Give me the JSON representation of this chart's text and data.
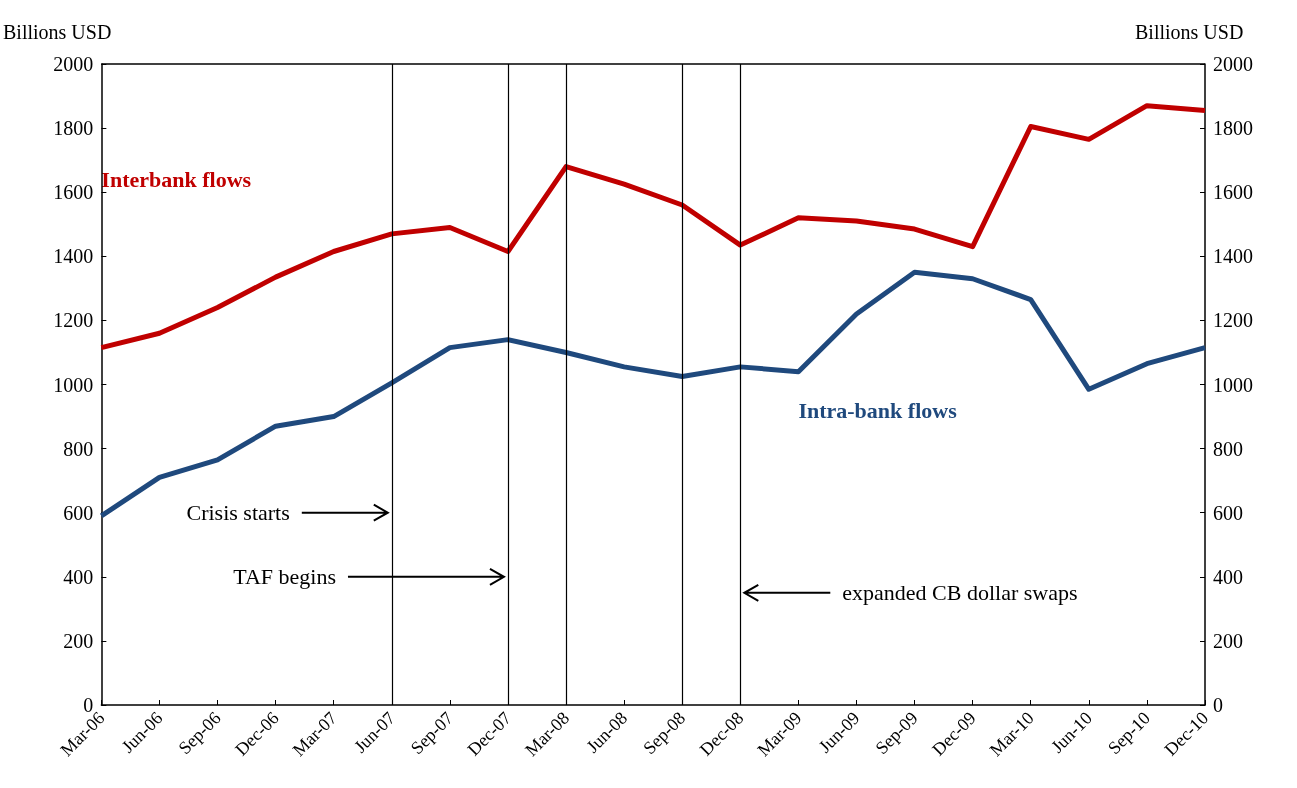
{
  "chart_data": {
    "type": "line",
    "ylabel": "Billions USD",
    "y2label": "Billions USD",
    "categories": [
      "Mar-06",
      "Jun-06",
      "Sep-06",
      "Dec-06",
      "Mar-07",
      "Jun-07",
      "Sep-07",
      "Dec-07",
      "Mar-08",
      "Jun-08",
      "Sep-08",
      "Dec-08",
      "Mar-09",
      "Jun-09",
      "Sep-09",
      "Dec-09",
      "Mar-10",
      "Jun-10",
      "Sep-10",
      "Dec-10"
    ],
    "series": [
      {
        "name": "Interbank flows",
        "color": "#c00000",
        "values": [
          1115,
          1160,
          1240,
          1335,
          1415,
          1470,
          1490,
          1415,
          1680,
          1625,
          1560,
          1435,
          1520,
          1510,
          1485,
          1430,
          1805,
          1765,
          1870,
          1855
        ]
      },
      {
        "name": "Intra-bank flows",
        "color": "#1f497d",
        "values": [
          590,
          710,
          765,
          870,
          900,
          1005,
          1115,
          1140,
          1100,
          1055,
          1025,
          1055,
          1040,
          1220,
          1350,
          1330,
          1265,
          985,
          1065,
          1115
        ]
      }
    ],
    "ylim": [
      0,
      2000
    ],
    "yticks": [
      0,
      200,
      400,
      600,
      800,
      1000,
      1200,
      1400,
      1600,
      1800,
      2000
    ],
    "y2lim": [
      0,
      2000
    ],
    "y2ticks": [
      0,
      200,
      400,
      600,
      800,
      1000,
      1200,
      1400,
      1600,
      1800,
      2000
    ],
    "ref_lines": [
      {
        "axis": "x",
        "value": "Jun-07",
        "label": "Crisis starts",
        "color": "#000000"
      },
      {
        "axis": "x",
        "value": "Dec-07",
        "label": "TAF begins",
        "color": "#000000"
      },
      {
        "axis": "x",
        "value": "Mar-08",
        "label": null,
        "color": "#000000"
      },
      {
        "axis": "x",
        "value": "Sep-08",
        "label": null,
        "color": "#000000"
      },
      {
        "axis": "x",
        "value": "Dec-08",
        "label": "expanded CB dollar swaps",
        "color": "#000000"
      }
    ],
    "grid": false,
    "legend": false,
    "marker": "none",
    "line_style": "solid"
  }
}
